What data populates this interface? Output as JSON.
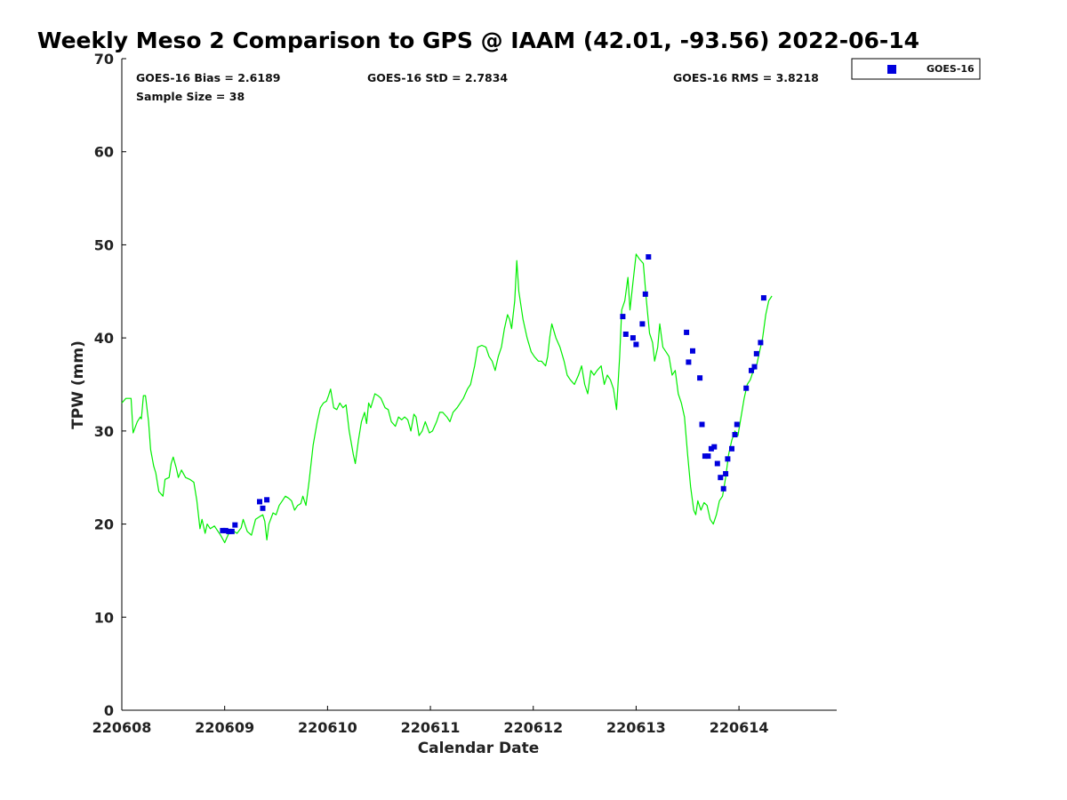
{
  "chart_data": {
    "type": "scatter",
    "title": "Weekly Meso 2 Comparison to GPS @ IAAM (42.01, -93.56) 2022-06-14",
    "xlabel": "Calendar Date",
    "ylabel": "TPW (mm)",
    "xlim": [
      0,
      6.95
    ],
    "ylim": [
      0,
      70
    ],
    "x_unit": "days since 220608",
    "x_ticks": [
      {
        "value": 0,
        "label": "220608"
      },
      {
        "value": 1,
        "label": "220609"
      },
      {
        "value": 2,
        "label": "220610"
      },
      {
        "value": 3,
        "label": "220611"
      },
      {
        "value": 4,
        "label": "220612"
      },
      {
        "value": 5,
        "label": "220613"
      },
      {
        "value": 6,
        "label": "220614"
      }
    ],
    "y_ticks": [
      0,
      10,
      20,
      30,
      40,
      50,
      60,
      70
    ],
    "grid": false,
    "legend_position": "outside-top-right",
    "stats": {
      "bias": "GOES-16 Bias = 2.6189",
      "std": "GOES-16 StD = 2.7834",
      "rms": "GOES-16 RMS = 3.8218",
      "sample": "Sample Size = 38"
    },
    "series": [
      {
        "type": "line",
        "color": "#00ee00",
        "points": [
          [
            0.0,
            33.0
          ],
          [
            0.04,
            33.5
          ],
          [
            0.09,
            33.5
          ],
          [
            0.11,
            29.8
          ],
          [
            0.15,
            31.0
          ],
          [
            0.18,
            31.5
          ],
          [
            0.19,
            31.3
          ],
          [
            0.21,
            33.8
          ],
          [
            0.23,
            33.8
          ],
          [
            0.26,
            31.0
          ],
          [
            0.28,
            28.0
          ],
          [
            0.31,
            26.2
          ],
          [
            0.33,
            25.5
          ],
          [
            0.36,
            23.5
          ],
          [
            0.4,
            23.0
          ],
          [
            0.42,
            24.8
          ],
          [
            0.46,
            25.0
          ],
          [
            0.48,
            26.5
          ],
          [
            0.5,
            27.2
          ],
          [
            0.53,
            26.0
          ],
          [
            0.55,
            25.0
          ],
          [
            0.58,
            25.8
          ],
          [
            0.62,
            25.0
          ],
          [
            0.66,
            24.8
          ],
          [
            0.7,
            24.5
          ],
          [
            0.73,
            22.5
          ],
          [
            0.76,
            19.5
          ],
          [
            0.78,
            20.5
          ],
          [
            0.81,
            19.0
          ],
          [
            0.83,
            20.0
          ],
          [
            0.86,
            19.5
          ],
          [
            0.9,
            19.8
          ],
          [
            0.93,
            19.3
          ],
          [
            0.96,
            18.8
          ],
          [
            1.0,
            18.0
          ],
          [
            1.04,
            19.0
          ],
          [
            1.08,
            19.3
          ],
          [
            1.12,
            19.0
          ],
          [
            1.16,
            19.6
          ],
          [
            1.18,
            20.5
          ],
          [
            1.22,
            19.2
          ],
          [
            1.26,
            18.8
          ],
          [
            1.3,
            20.5
          ],
          [
            1.34,
            20.8
          ],
          [
            1.37,
            21.0
          ],
          [
            1.39,
            20.3
          ],
          [
            1.41,
            18.3
          ],
          [
            1.43,
            20.0
          ],
          [
            1.47,
            21.2
          ],
          [
            1.5,
            21.0
          ],
          [
            1.53,
            22.0
          ],
          [
            1.56,
            22.5
          ],
          [
            1.59,
            23.0
          ],
          [
            1.62,
            22.8
          ],
          [
            1.65,
            22.5
          ],
          [
            1.68,
            21.5
          ],
          [
            1.71,
            22.0
          ],
          [
            1.74,
            22.2
          ],
          [
            1.76,
            23.0
          ],
          [
            1.79,
            22.0
          ],
          [
            1.82,
            24.5
          ],
          [
            1.86,
            28.5
          ],
          [
            1.9,
            31.0
          ],
          [
            1.93,
            32.5
          ],
          [
            1.96,
            33.0
          ],
          [
            1.99,
            33.2
          ],
          [
            2.01,
            33.8
          ],
          [
            2.03,
            34.5
          ],
          [
            2.06,
            32.5
          ],
          [
            2.09,
            32.3
          ],
          [
            2.12,
            33.0
          ],
          [
            2.15,
            32.5
          ],
          [
            2.18,
            32.8
          ],
          [
            2.21,
            30.0
          ],
          [
            2.25,
            27.5
          ],
          [
            2.27,
            26.5
          ],
          [
            2.3,
            29.0
          ],
          [
            2.33,
            31.0
          ],
          [
            2.36,
            32.0
          ],
          [
            2.38,
            30.8
          ],
          [
            2.4,
            33.0
          ],
          [
            2.42,
            32.5
          ],
          [
            2.46,
            34.0
          ],
          [
            2.49,
            33.8
          ],
          [
            2.52,
            33.5
          ],
          [
            2.56,
            32.5
          ],
          [
            2.59,
            32.3
          ],
          [
            2.62,
            31.0
          ],
          [
            2.66,
            30.5
          ],
          [
            2.69,
            31.5
          ],
          [
            2.72,
            31.2
          ],
          [
            2.75,
            31.5
          ],
          [
            2.78,
            31.2
          ],
          [
            2.81,
            30.0
          ],
          [
            2.84,
            31.8
          ],
          [
            2.86,
            31.5
          ],
          [
            2.89,
            29.5
          ],
          [
            2.92,
            30.0
          ],
          [
            2.95,
            31.0
          ],
          [
            2.99,
            29.8
          ],
          [
            3.02,
            30.0
          ],
          [
            3.06,
            31.0
          ],
          [
            3.09,
            32.0
          ],
          [
            3.12,
            32.0
          ],
          [
            3.16,
            31.5
          ],
          [
            3.19,
            31.0
          ],
          [
            3.22,
            32.0
          ],
          [
            3.26,
            32.5
          ],
          [
            3.29,
            33.0
          ],
          [
            3.32,
            33.5
          ],
          [
            3.36,
            34.5
          ],
          [
            3.39,
            35.0
          ],
          [
            3.43,
            37.0
          ],
          [
            3.46,
            39.0
          ],
          [
            3.5,
            39.2
          ],
          [
            3.54,
            39.0
          ],
          [
            3.57,
            38.0
          ],
          [
            3.6,
            37.5
          ],
          [
            3.63,
            36.5
          ],
          [
            3.66,
            38.0
          ],
          [
            3.69,
            39.0
          ],
          [
            3.72,
            41.0
          ],
          [
            3.75,
            42.5
          ],
          [
            3.77,
            42.0
          ],
          [
            3.79,
            41.0
          ],
          [
            3.82,
            44.0
          ],
          [
            3.84,
            48.3
          ],
          [
            3.86,
            45.0
          ],
          [
            3.9,
            42.0
          ],
          [
            3.94,
            40.0
          ],
          [
            3.98,
            38.5
          ],
          [
            4.01,
            38.0
          ],
          [
            4.05,
            37.5
          ],
          [
            4.08,
            37.5
          ],
          [
            4.12,
            37.0
          ],
          [
            4.14,
            38.0
          ],
          [
            4.16,
            40.0
          ],
          [
            4.18,
            41.5
          ],
          [
            4.22,
            40.0
          ],
          [
            4.26,
            39.0
          ],
          [
            4.3,
            37.5
          ],
          [
            4.33,
            36.0
          ],
          [
            4.36,
            35.5
          ],
          [
            4.4,
            35.0
          ],
          [
            4.44,
            36.0
          ],
          [
            4.47,
            37.0
          ],
          [
            4.5,
            35.0
          ],
          [
            4.53,
            34.0
          ],
          [
            4.56,
            36.5
          ],
          [
            4.59,
            36.0
          ],
          [
            4.62,
            36.5
          ],
          [
            4.66,
            37.0
          ],
          [
            4.69,
            35.0
          ],
          [
            4.72,
            36.0
          ],
          [
            4.75,
            35.5
          ],
          [
            4.78,
            34.5
          ],
          [
            4.81,
            32.3
          ],
          [
            4.84,
            38.0
          ],
          [
            4.86,
            43.0
          ],
          [
            4.89,
            44.0
          ],
          [
            4.92,
            46.5
          ],
          [
            4.94,
            43.0
          ],
          [
            4.97,
            46.0
          ],
          [
            5.0,
            49.0
          ],
          [
            5.03,
            48.5
          ],
          [
            5.07,
            48.0
          ],
          [
            5.1,
            44.0
          ],
          [
            5.13,
            40.5
          ],
          [
            5.16,
            39.5
          ],
          [
            5.18,
            37.5
          ],
          [
            5.21,
            39.0
          ],
          [
            5.23,
            41.5
          ],
          [
            5.26,
            39.0
          ],
          [
            5.29,
            38.5
          ],
          [
            5.32,
            38.0
          ],
          [
            5.35,
            36.0
          ],
          [
            5.38,
            36.5
          ],
          [
            5.41,
            34.0
          ],
          [
            5.44,
            33.0
          ],
          [
            5.47,
            31.5
          ],
          [
            5.5,
            27.5
          ],
          [
            5.53,
            24.0
          ],
          [
            5.56,
            21.5
          ],
          [
            5.58,
            21.0
          ],
          [
            5.6,
            22.5
          ],
          [
            5.63,
            21.5
          ],
          [
            5.66,
            22.3
          ],
          [
            5.69,
            22.0
          ],
          [
            5.72,
            20.5
          ],
          [
            5.75,
            20.0
          ],
          [
            5.78,
            21.0
          ],
          [
            5.81,
            22.5
          ],
          [
            5.84,
            23.0
          ],
          [
            5.87,
            25.0
          ],
          [
            5.9,
            27.5
          ],
          [
            5.93,
            29.0
          ],
          [
            5.96,
            30.0
          ],
          [
            5.99,
            29.5
          ],
          [
            6.02,
            31.5
          ],
          [
            6.05,
            33.5
          ],
          [
            6.08,
            35.0
          ],
          [
            6.11,
            35.5
          ],
          [
            6.14,
            36.5
          ],
          [
            6.17,
            37.0
          ],
          [
            6.2,
            38.5
          ],
          [
            6.23,
            40.0
          ],
          [
            6.26,
            42.5
          ],
          [
            6.29,
            44.0
          ],
          [
            6.32,
            44.5
          ]
        ]
      },
      {
        "type": "scatter",
        "name": "GOES-16",
        "color": "#0000dd",
        "marker": "square",
        "points": [
          [
            0.98,
            19.3
          ],
          [
            1.01,
            19.3
          ],
          [
            1.04,
            19.2
          ],
          [
            1.07,
            19.2
          ],
          [
            1.1,
            19.9
          ],
          [
            1.34,
            22.4
          ],
          [
            1.37,
            21.7
          ],
          [
            1.41,
            22.6
          ],
          [
            4.87,
            42.3
          ],
          [
            4.9,
            40.4
          ],
          [
            4.97,
            40.0
          ],
          [
            5.0,
            39.3
          ],
          [
            5.06,
            41.5
          ],
          [
            5.09,
            44.7
          ],
          [
            5.12,
            48.7
          ],
          [
            5.49,
            40.6
          ],
          [
            5.51,
            37.4
          ],
          [
            5.55,
            38.6
          ],
          [
            5.62,
            35.7
          ],
          [
            5.64,
            30.7
          ],
          [
            5.67,
            27.3
          ],
          [
            5.7,
            27.3
          ],
          [
            5.73,
            28.1
          ],
          [
            5.76,
            28.3
          ],
          [
            5.79,
            26.5
          ],
          [
            5.82,
            25.0
          ],
          [
            5.85,
            23.8
          ],
          [
            5.87,
            25.4
          ],
          [
            5.89,
            27.0
          ],
          [
            5.93,
            28.1
          ],
          [
            5.96,
            29.6
          ],
          [
            5.98,
            30.7
          ],
          [
            6.07,
            34.6
          ],
          [
            6.12,
            36.5
          ],
          [
            6.15,
            36.9
          ],
          [
            6.17,
            38.3
          ],
          [
            6.21,
            39.5
          ],
          [
            6.24,
            44.3
          ]
        ]
      }
    ]
  }
}
